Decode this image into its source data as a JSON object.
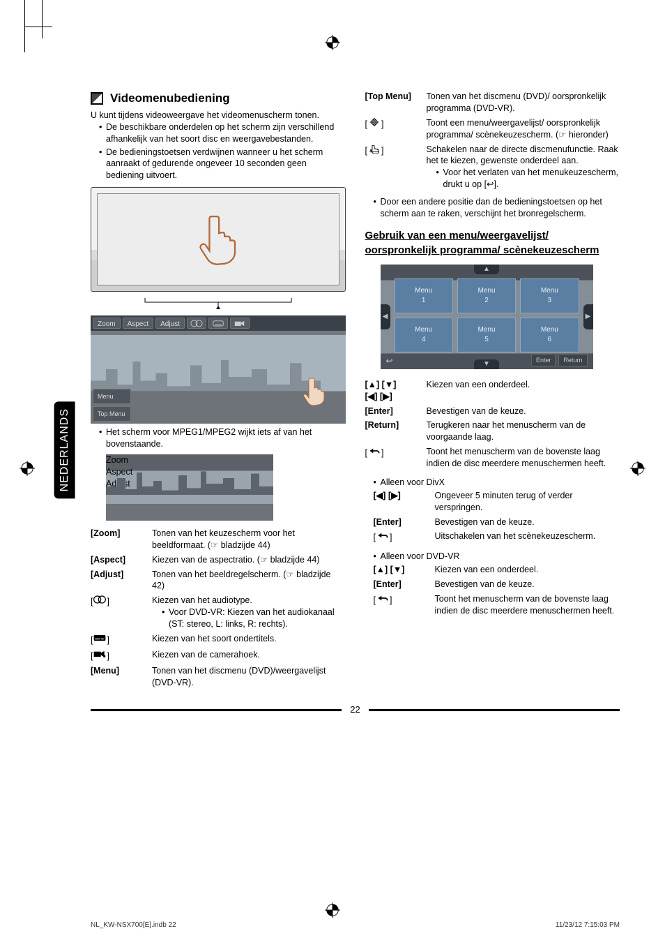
{
  "sideTab": "NEDERLANDS",
  "section": {
    "title": "Videomenubediening",
    "intro": "U kunt tijdens videoweergave het videomenuscherm tonen.",
    "bullets": [
      "De beschikbare onderdelen op het scherm zijn verschillend afhankelijk van het soort disc en weergavebestanden.",
      "De bedieningstoetsen verdwijnen wanneer u het scherm aanraakt of gedurende ongeveer 10 seconden geen bediening uitvoert."
    ],
    "menuFigButtons": {
      "zoom": "Zoom",
      "aspect": "Aspect",
      "adjust": "Adjust",
      "menu": "Menu",
      "topmenu": "Top Menu"
    },
    "noteMpeg": "Het scherm voor MPEG1/MPEG2 wijkt iets af van het bovenstaande.",
    "leftDefs": [
      {
        "term": "[Zoom]",
        "bold": true,
        "desc": "Tonen van het keuzescherm voor het beeldformaat. (☞ bladzijde 44)"
      },
      {
        "term": "[Aspect]",
        "bold": true,
        "desc": "Kiezen van de aspectratio. (☞ bladzijde 44)"
      },
      {
        "term": "[Adjust]",
        "bold": true,
        "desc": "Tonen van het beeldregelscherm. (☞ bladzijde 42)"
      },
      {
        "term": "audio-icon",
        "bold": false,
        "icon": "audio",
        "desc": "Kiezen van het audiotype.",
        "sub": [
          "Voor DVD-VR: Kiezen van het audiokanaal (ST: stereo, L: links, R: rechts)."
        ]
      },
      {
        "term": "subtitle-icon",
        "bold": false,
        "icon": "subtitle",
        "desc": "Kiezen van het soort ondertitels."
      },
      {
        "term": "angle-icon",
        "bold": false,
        "icon": "angle",
        "desc": "Kiezen van de camerahoek."
      },
      {
        "term": "[Menu]",
        "bold": true,
        "desc": "Tonen van het discmenu (DVD)/weergavelijst (DVD-VR)."
      }
    ],
    "rightDefs": [
      {
        "term": "[Top Menu]",
        "bold": true,
        "desc": "Tonen van het discmenu (DVD)/ oorspronkelijk programma (DVD-VR)."
      },
      {
        "term": "nav-icon",
        "bold": false,
        "icon": "nav",
        "desc": "Toont een menu/weergavelijst/ oorspronkelijk programma/ scènekeuzescherm. (☞ hieronder)"
      },
      {
        "term": "touch-icon",
        "bold": false,
        "icon": "touch",
        "desc": "Schakelen naar de directe discmenufunctie. Raak het te kiezen, gewenste onderdeel aan.",
        "sub": [
          "Voor het verlaten van het menukeuzescherm, drukt u op [↩]."
        ]
      }
    ],
    "rightNote": "Door een andere positie dan de bedieningstoetsen op het scherm aan te raken, verschijnt het bronregelscherm.",
    "subheading": "Gebruik van een menu/weergavelijst/ oorspronkelijk programma/ scènekeuzescherm",
    "gridCells": [
      {
        "t1": "Menu",
        "t2": "1"
      },
      {
        "t1": "Menu",
        "t2": "2"
      },
      {
        "t1": "Menu",
        "t2": "3"
      },
      {
        "t1": "Menu",
        "t2": "4"
      },
      {
        "t1": "Menu",
        "t2": "5"
      },
      {
        "t1": "Menu",
        "t2": "6"
      }
    ],
    "gridButtons": {
      "enter": "Enter",
      "return": "Return"
    },
    "navDefs": [
      {
        "term": "[▲] [▼]\n[◀] [▶]",
        "desc": "Kiezen van een onderdeel."
      },
      {
        "term": "[Enter]",
        "bold": true,
        "desc": "Bevestigen van de keuze."
      },
      {
        "term": "[Return]",
        "bold": true,
        "desc": "Terugkeren naar het menuscherm van de voorgaande laag."
      },
      {
        "term": "back-icon",
        "icon": "back",
        "desc": "Toont het menuscherm van de bovenste laag indien de disc meerdere menuschermen heeft."
      }
    ],
    "divxHeading": "Alleen voor DivX",
    "divxDefs": [
      {
        "term": "[◀] [▶]",
        "desc": "Ongeveer 5 minuten terug of verder verspringen."
      },
      {
        "term": "[Enter]",
        "bold": true,
        "desc": "Bevestigen van de keuze."
      },
      {
        "term": "back-icon",
        "icon": "back",
        "desc": "Uitschakelen van het scènekeuzescherm."
      }
    ],
    "dvdvrHeading": "Alleen voor DVD-VR",
    "dvdvrDefs": [
      {
        "term": "[▲] [▼]",
        "desc": "Kiezen van een onderdeel."
      },
      {
        "term": "[Enter]",
        "bold": true,
        "desc": "Bevestigen van de keuze."
      },
      {
        "term": "back-icon",
        "icon": "back",
        "desc": "Toont het menuscherm van de bovenste laag indien de disc meerdere menuschermen heeft."
      }
    ]
  },
  "pageNumber": "22",
  "footer": {
    "left": "NL_KW-NSX700[E].indb   22",
    "right": "11/23/12   7:15:03 PM"
  }
}
